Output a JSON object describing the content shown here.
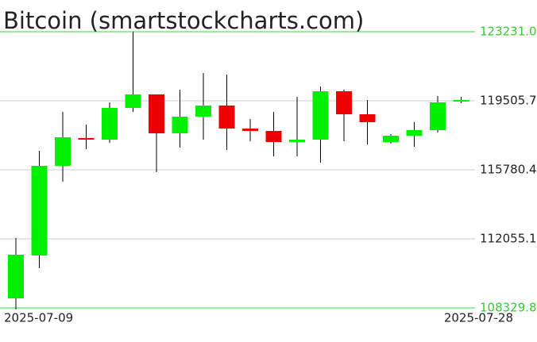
{
  "chart_data": {
    "type": "candlestick",
    "title": "Bitcoin (smartstockcharts.com)",
    "categories": [
      "2025-07-09",
      null,
      null,
      null,
      null,
      null,
      null,
      null,
      null,
      null,
      null,
      null,
      null,
      null,
      null,
      null,
      null,
      null,
      null,
      "2025-07-28"
    ],
    "open": [
      108844,
      111156,
      115995,
      117493,
      117408,
      119121,
      119849,
      117750,
      118650,
      119249,
      118007,
      117879,
      117279,
      117408,
      120020,
      118778,
      117279,
      117622,
      117922,
      119463
    ],
    "high": [
      112098,
      116808,
      118907,
      118221,
      119420,
      123231,
      119849,
      120106,
      121005,
      120919,
      118521,
      118907,
      119720,
      120277,
      120106,
      119549,
      117707,
      118350,
      119763,
      119720
    ],
    "low": [
      108244,
      110471,
      115138,
      116894,
      117237,
      118907,
      115652,
      116980,
      117408,
      116851,
      117322,
      116509,
      116509,
      116166,
      117322,
      117151,
      117194,
      117022,
      117793,
      119378
    ],
    "close": [
      111199,
      115995,
      117536,
      117408,
      119121,
      119849,
      117750,
      118650,
      119249,
      118007,
      117879,
      117279,
      117408,
      120020,
      118778,
      118350,
      117622,
      117922,
      119420,
      119549
    ],
    "up_color": "#00ee00",
    "down_color": "#ee0000",
    "ylim": [
      108329.8,
      123231.0
    ],
    "yticks": [
      {
        "value": 108329.8,
        "label": "108329.8"
      },
      {
        "value": 112055.1,
        "label": "112055.1"
      },
      {
        "value": 115780.4,
        "label": "115780.4"
      },
      {
        "value": 119505.7,
        "label": "119505.7"
      },
      {
        "value": 123231.0,
        "label": "123231.0"
      }
    ],
    "grid": true
  }
}
